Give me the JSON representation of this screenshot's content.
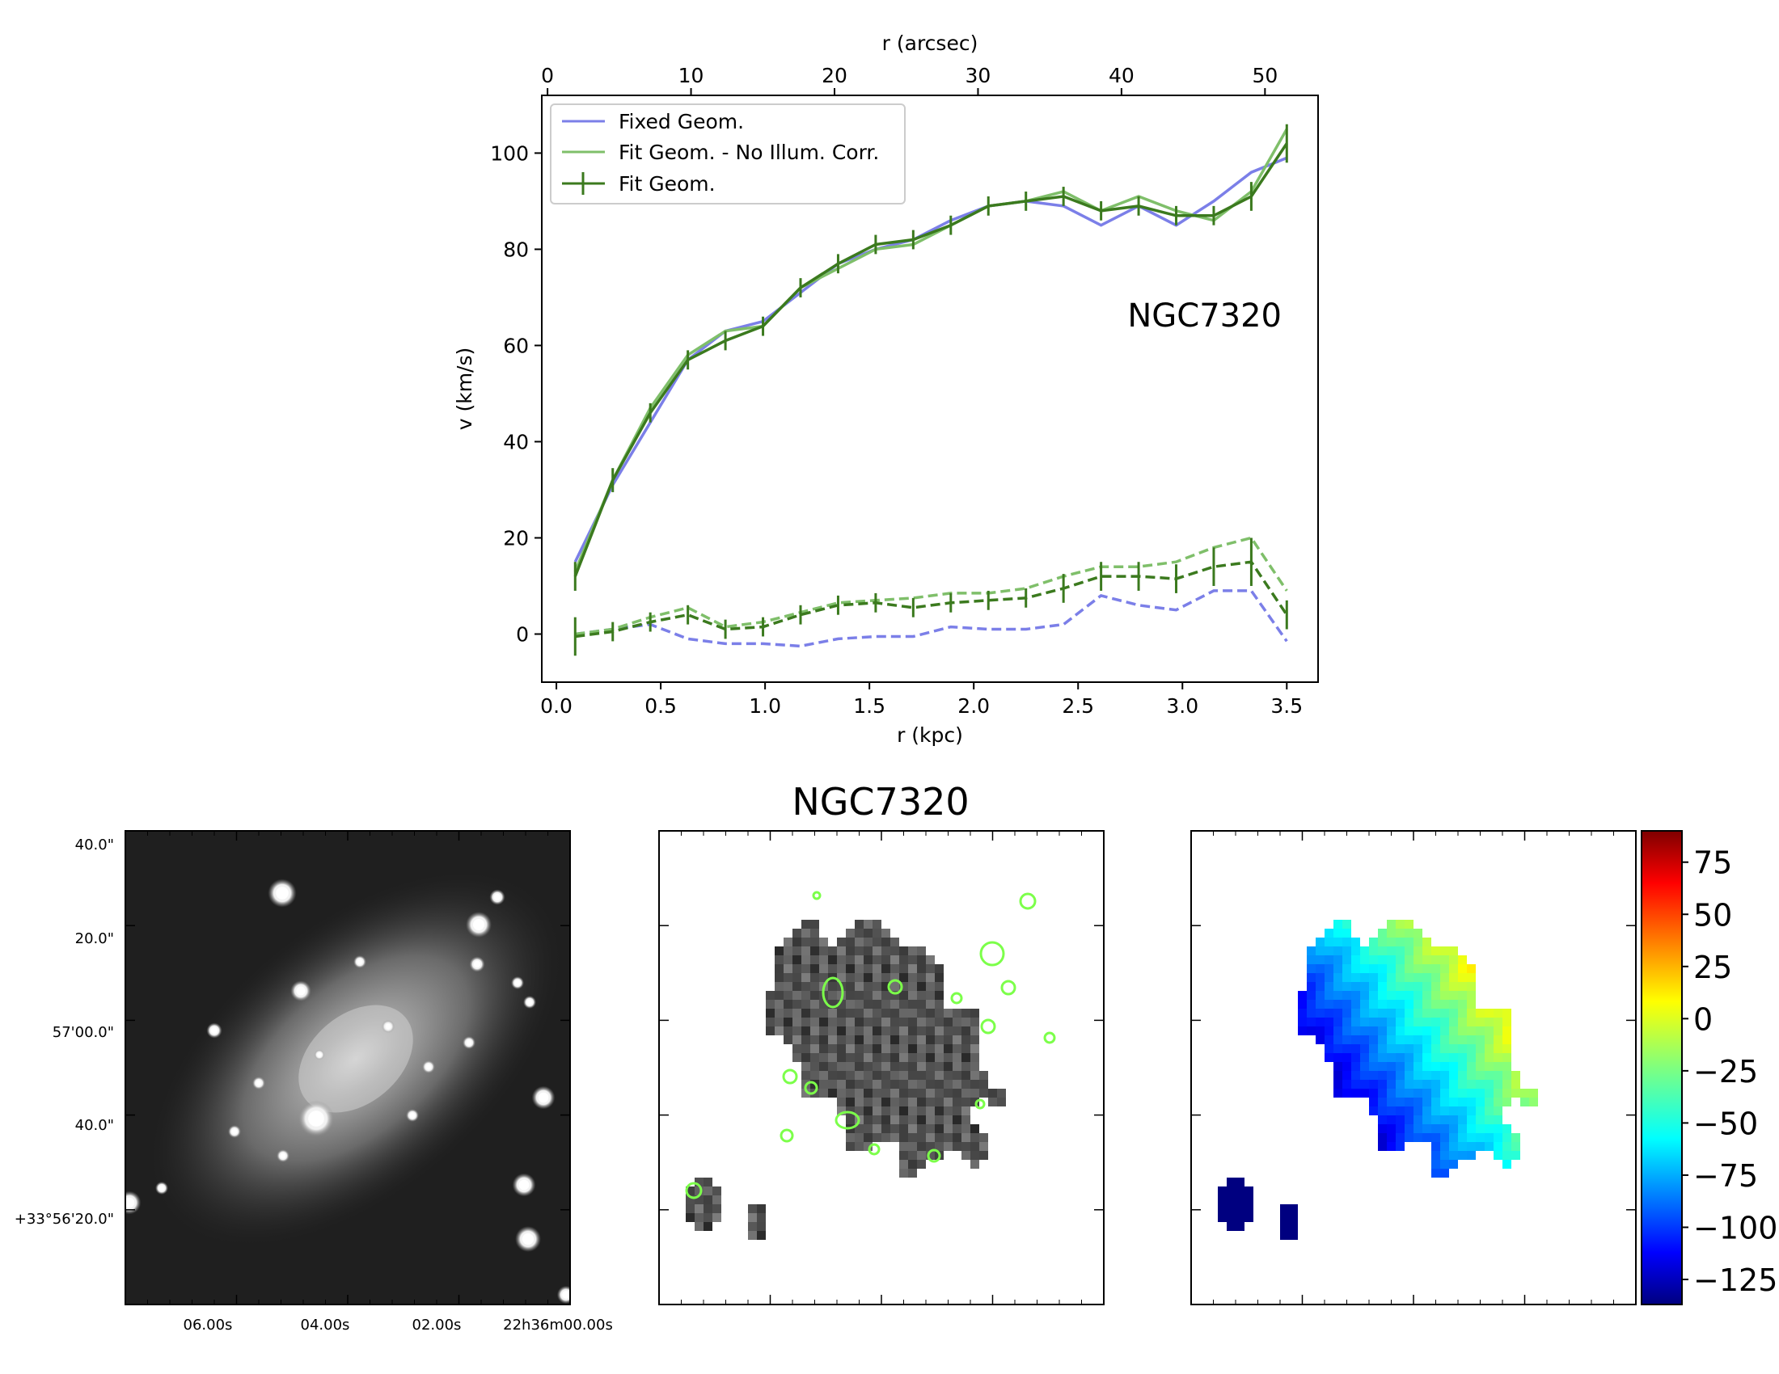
{
  "chart_data": [
    {
      "type": "line",
      "title": "NGC7320",
      "xlabel": "r (kpc)",
      "ylabel": "v (km/s)",
      "x2label": "r (arcsec)",
      "xlim": [
        -0.07,
        3.65
      ],
      "ylim": [
        -10,
        112
      ],
      "x2lim": [
        -0.4,
        53.7
      ],
      "xticks": [
        "0.0",
        "0.5",
        "1.0",
        "1.5",
        "2.0",
        "2.5",
        "3.0",
        "3.5"
      ],
      "yticks": [
        "0",
        "20",
        "40",
        "60",
        "80",
        "100"
      ],
      "x2ticks": [
        "0",
        "10",
        "20",
        "30",
        "40",
        "50"
      ],
      "x": [
        0.09,
        0.27,
        0.45,
        0.63,
        0.81,
        0.99,
        1.17,
        1.35,
        1.53,
        1.71,
        1.89,
        2.07,
        2.25,
        2.43,
        2.61,
        2.79,
        2.97,
        3.15,
        3.33,
        3.5
      ],
      "series": [
        {
          "name": "Fixed Geom.",
          "style": "solid",
          "color": "#7b7fe8",
          "values": [
            15,
            31,
            44,
            57,
            63,
            65,
            71,
            77,
            80,
            82,
            86,
            89,
            90,
            89,
            85,
            89,
            85,
            90,
            96,
            99
          ]
        },
        {
          "name": "Fit Geom. - No Illum. Corr.",
          "style": "solid",
          "color": "#7fbf6a",
          "values": [
            13,
            32,
            47,
            58,
            63,
            64,
            72,
            76,
            80,
            81,
            85,
            89,
            90,
            92,
            88,
            91,
            88,
            86,
            92,
            105
          ]
        },
        {
          "name": "Fit Geom.",
          "style": "solid",
          "color": "#3b7a1e",
          "values": [
            12,
            32,
            46,
            57,
            61,
            64,
            72,
            77,
            81,
            82,
            85,
            89,
            90,
            91,
            88,
            89,
            87,
            87,
            91,
            102
          ],
          "errors": [
            3,
            2.5,
            2,
            2,
            2,
            2,
            2,
            2,
            2,
            2,
            2,
            2,
            2,
            2,
            2,
            2,
            2,
            2,
            3,
            4
          ]
        },
        {
          "name": "Fixed Geom. (dispersion)",
          "style": "dashed",
          "color": "#7b7fe8",
          "values": [
            0,
            1,
            2,
            -1,
            -2,
            -2,
            -2.5,
            -1,
            -0.5,
            -0.5,
            1.5,
            1,
            1,
            2,
            8,
            6,
            5,
            9,
            9,
            -1.5
          ]
        },
        {
          "name": "Fit Geom. - No Illum. Corr. (dispersion)",
          "style": "dashed",
          "color": "#7fbf6a",
          "values": [
            0,
            1,
            3.5,
            5.5,
            1.5,
            2.5,
            4.5,
            6.5,
            7,
            7.5,
            8.5,
            8.5,
            9.5,
            12,
            14,
            14,
            15,
            18,
            20,
            9
          ]
        },
        {
          "name": "Fit Geom. (dispersion)",
          "style": "dashed",
          "color": "#3b7a1e",
          "values": [
            -0.5,
            0.5,
            2.5,
            4,
            1,
            1.5,
            4,
            6,
            6.5,
            5.5,
            6.5,
            7,
            7.5,
            9.5,
            12,
            12,
            11.5,
            14,
            15,
            4
          ],
          "errors": [
            4,
            2,
            2,
            2,
            2,
            2,
            2,
            2,
            2,
            2,
            2,
            2,
            2,
            3,
            3,
            3,
            3,
            4,
            5,
            3
          ]
        }
      ],
      "legend": [
        "Fixed Geom.",
        "Fit Geom. - No Illum. Corr.",
        "Fit Geom."
      ],
      "legend_position": "top-left",
      "annotation": "NGC7320"
    },
    {
      "type": "image",
      "title": "NGC7320",
      "ra_ticks": [
        "06.00s",
        "04.00s",
        "02.00s",
        "22h36m00.00s"
      ],
      "dec_ticks": [
        "40.0\"",
        "20.0\"",
        "57'00.0\"",
        "40.0\"",
        "+33°56'20.0\""
      ]
    },
    {
      "type": "heatmap",
      "colorbar_ticks": [
        "75",
        "50",
        "25",
        "0",
        "−25",
        "−50",
        "−75",
        "−100",
        "−125"
      ],
      "colorbar_range": [
        -137,
        90
      ]
    }
  ]
}
